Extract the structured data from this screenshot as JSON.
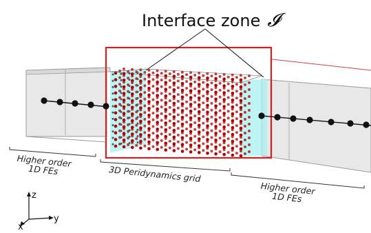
{
  "title": {
    "text": "Interface zone",
    "symbol": "𝓘"
  },
  "labels": {
    "left": [
      "Higher order",
      "1D FEs"
    ],
    "middle": "3D Peridynamics grid",
    "right": [
      "Higher order",
      "1D FEs"
    ]
  },
  "axes": {
    "z": "z",
    "y": "y",
    "x": "x"
  },
  "colors": {
    "beam_fill": "#e6e6e6",
    "beam_edge": "#9a9a9a",
    "node": "#111111",
    "particle": "#b00000",
    "interface_face": "#a8f0f0",
    "zone_frame": "#e02020"
  }
}
